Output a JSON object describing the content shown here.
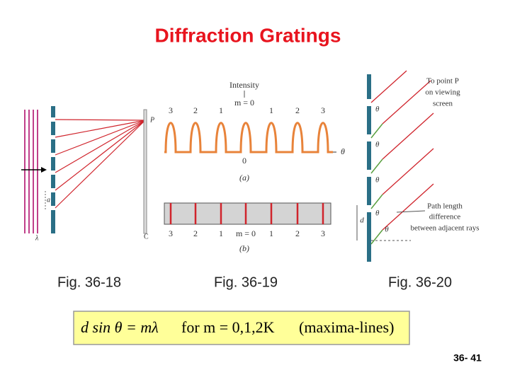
{
  "title": "Diffraction Gratings",
  "fig_36_18": {
    "caption": "Fig. 36-18",
    "labels": [
      "P",
      "a",
      "λ",
      "C"
    ]
  },
  "fig_36_19": {
    "caption": "Fig. 36-19",
    "intensity_axis": "Intensity",
    "central_order": "m = 0",
    "orders_top": [
      "3",
      "2",
      "1",
      "1",
      "2",
      "3"
    ],
    "origin": "0",
    "angle": "θ",
    "panel_a": "(a)",
    "orders_bottom": [
      "3",
      "2",
      "1",
      "m = 0",
      "1",
      "2",
      "3"
    ],
    "panel_b": "(b)"
  },
  "fig_36_20": {
    "caption": "Fig. 36-20",
    "screen_note": [
      "To point P",
      "on viewing",
      "screen"
    ],
    "angle_labels": [
      "θ",
      "θ",
      "θ",
      "θ"
    ],
    "path_note": [
      "Path length",
      "difference",
      "between adjacent rays"
    ],
    "spacing": "d",
    "angle": "θ"
  },
  "equation": {
    "relation": "d sin θ = mλ",
    "condition": "for m = 0,1,2K",
    "note": "(maxima-lines)"
  },
  "slide_number": "36- 41"
}
